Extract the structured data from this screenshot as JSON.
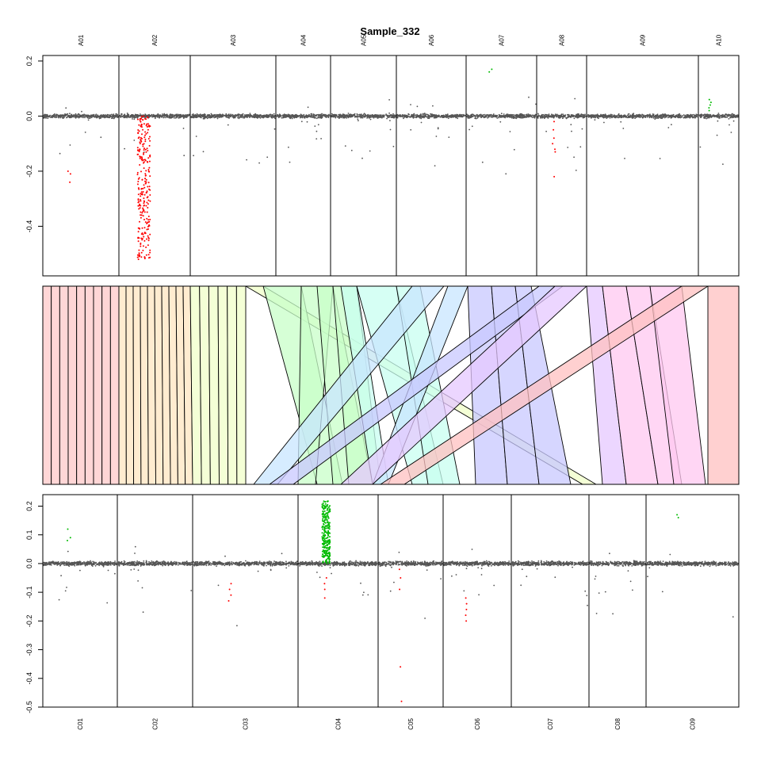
{
  "title": "Sample_332",
  "colors": {
    "point": "#555555",
    "loss": "#ff0000",
    "gain": "#00bb00",
    "panel_border": "#000000"
  },
  "chart_data": [
    {
      "type": "scatter",
      "panel": "top",
      "chromosomes": [
        "A01",
        "A02",
        "A03",
        "A04",
        "A05",
        "A06",
        "A07",
        "A08",
        "A09",
        "A10"
      ],
      "chromosome_boundaries_index": [
        0,
        1,
        2,
        3,
        4,
        5,
        6,
        7,
        8,
        9,
        10
      ],
      "ylim": [
        -0.58,
        0.22
      ],
      "yticks": [
        "0.2",
        "0.0",
        "-0.2",
        "-0.4"
      ],
      "ytick_values": [
        0.2,
        0.0,
        -0.2,
        -0.4
      ],
      "baseline": 0.0,
      "highlighted_segments": [
        {
          "chromosome": "A01",
          "kind": "loss",
          "values": [
            -0.2,
            -0.21,
            -0.24
          ]
        },
        {
          "chromosome": "A02",
          "kind": "loss",
          "range": [
            -0.52,
            0.0
          ],
          "dense": true
        },
        {
          "chromosome": "A07",
          "kind": "gain",
          "values": [
            0.16,
            0.17
          ]
        },
        {
          "chromosome": "A08",
          "kind": "loss",
          "values": [
            -0.02,
            -0.05,
            -0.08,
            -0.1,
            -0.12,
            -0.13,
            -0.22
          ]
        },
        {
          "chromosome": "A10",
          "kind": "gain",
          "values": [
            0.02,
            0.03,
            0.04,
            0.05,
            0.06
          ]
        }
      ]
    },
    {
      "type": "synteny",
      "panel": "middle",
      "top_chromosomes": [
        "A01",
        "A02",
        "A03",
        "A04",
        "A05",
        "A06",
        "A07",
        "A08",
        "A09",
        "A10"
      ],
      "bottom_chromosomes": [
        "C01",
        "C02",
        "C03",
        "C04",
        "C05",
        "C06",
        "C07",
        "C08",
        "C09"
      ],
      "band_colors": [
        "#ffc8c8",
        "#ffe6c0",
        "#f0ffc8",
        "#c8ffc8",
        "#c8fff0",
        "#c8e6ff",
        "#c8c8ff",
        "#e6c8ff",
        "#ffc8f0",
        "#ffc0c0"
      ]
    },
    {
      "type": "scatter",
      "panel": "bottom",
      "chromosomes": [
        "C01",
        "C02",
        "C03",
        "C04",
        "C05",
        "C06",
        "C07",
        "C08",
        "C09"
      ],
      "ylim": [
        -0.5,
        0.24
      ],
      "yticks": [
        "0.2",
        "0.15",
        "0.1",
        "0.05",
        "0.0",
        "-0.05",
        "-0.1",
        "-0.2",
        "-0.3",
        "-0.4",
        "-0.5"
      ],
      "ytick_values": [
        0.2,
        0.15,
        0.1,
        0.05,
        0.0,
        -0.05,
        -0.1,
        -0.2,
        -0.3,
        -0.4,
        -0.5
      ],
      "ytick_labels_shown": [
        "0.2",
        "0.1",
        "0.0",
        "-0.1",
        "-0.2",
        "-0.3",
        "-0.4",
        "-0.5"
      ],
      "ytick_label_values": [
        0.2,
        0.1,
        0.0,
        -0.1,
        -0.2,
        -0.3,
        -0.4,
        -0.5
      ],
      "baseline": 0.0,
      "highlighted_segments": [
        {
          "chromosome": "C01",
          "kind": "gain",
          "values": [
            0.08,
            0.09,
            0.12
          ]
        },
        {
          "chromosome": "C03",
          "kind": "loss",
          "values": [
            -0.07,
            -0.09,
            -0.11,
            -0.13
          ]
        },
        {
          "chromosome": "C04",
          "kind": "gain",
          "range": [
            0.0,
            0.22
          ],
          "dense": true
        },
        {
          "chromosome": "C04",
          "kind": "loss",
          "values": [
            -0.05,
            -0.07,
            -0.09,
            -0.12
          ]
        },
        {
          "chromosome": "C05",
          "kind": "loss",
          "values": [
            -0.02,
            -0.05,
            -0.09,
            -0.36,
            -0.48
          ]
        },
        {
          "chromosome": "C06",
          "kind": "loss",
          "values": [
            -0.12,
            -0.14,
            -0.16,
            -0.18,
            -0.2
          ]
        },
        {
          "chromosome": "C09",
          "kind": "gain",
          "values": [
            0.16,
            0.17
          ]
        }
      ]
    }
  ]
}
